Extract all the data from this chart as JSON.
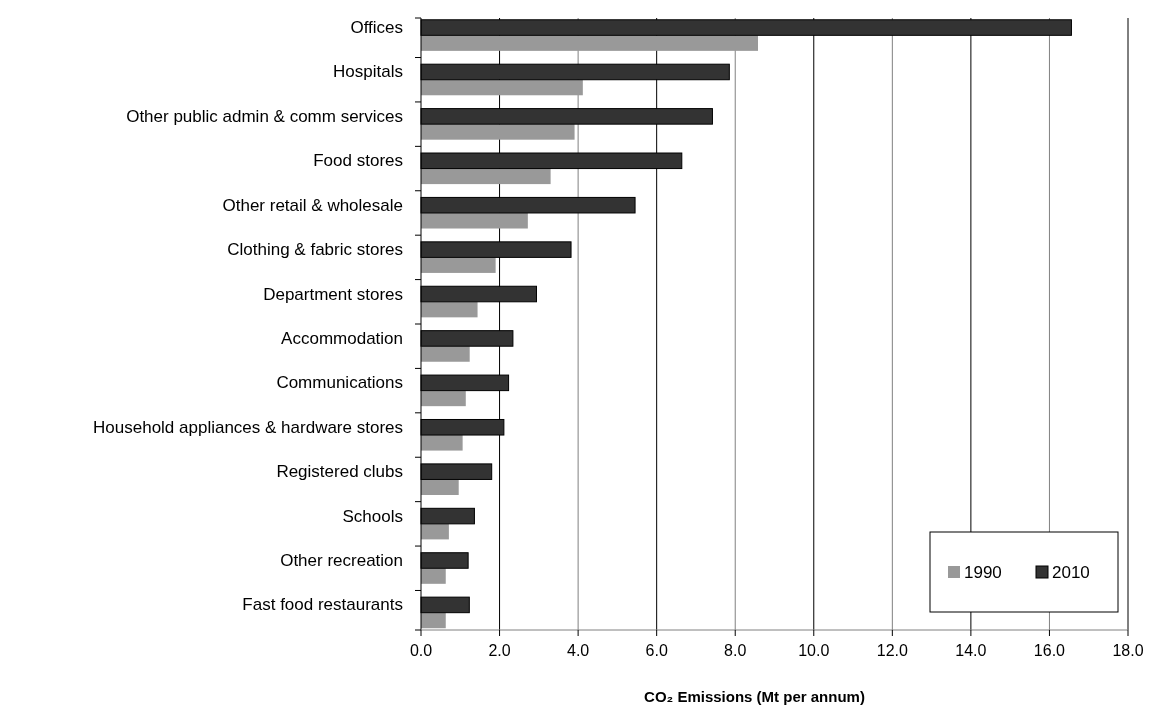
{
  "chart_data": {
    "type": "bar",
    "orientation": "horizontal",
    "xlabel": "CO₂ Emissions (Mt per annum)",
    "categories": [
      "Offices",
      "Hospitals",
      "Other public admin & comm services",
      "Food stores",
      "Other retail & wholesale",
      "Clothing & fabric stores",
      "Department stores",
      "Accommodation",
      "Communications",
      "Household appliances & hardware stores",
      "Registered clubs",
      "Schools",
      "Other recreation",
      "Fast food restaurants"
    ],
    "series": [
      {
        "name": "1990",
        "color": "#999999",
        "values": [
          8.58,
          4.12,
          3.91,
          3.3,
          2.72,
          1.9,
          1.44,
          1.24,
          1.14,
          1.06,
          0.96,
          0.71,
          0.63,
          0.63
        ]
      },
      {
        "name": "2010",
        "color": "#333333",
        "values": [
          16.56,
          7.85,
          7.42,
          6.64,
          5.45,
          3.82,
          2.94,
          2.34,
          2.23,
          2.11,
          1.8,
          1.36,
          1.2,
          1.23
        ]
      }
    ],
    "xlim": [
      0,
      18
    ],
    "xticks": [
      {
        "value": 0,
        "label": "0.0"
      },
      {
        "value": 2,
        "label": "2.0"
      },
      {
        "value": 4,
        "label": "4.0"
      },
      {
        "value": 6,
        "label": "6.0"
      },
      {
        "value": 8,
        "label": "8.0"
      },
      {
        "value": 10,
        "label": "10.0"
      },
      {
        "value": 12,
        "label": "12.0"
      },
      {
        "value": 14,
        "label": "14.0"
      },
      {
        "value": 16,
        "label": "16.0"
      },
      {
        "value": 18,
        "label": "18.0"
      }
    ],
    "grid": "x",
    "legend": "bottom right"
  }
}
